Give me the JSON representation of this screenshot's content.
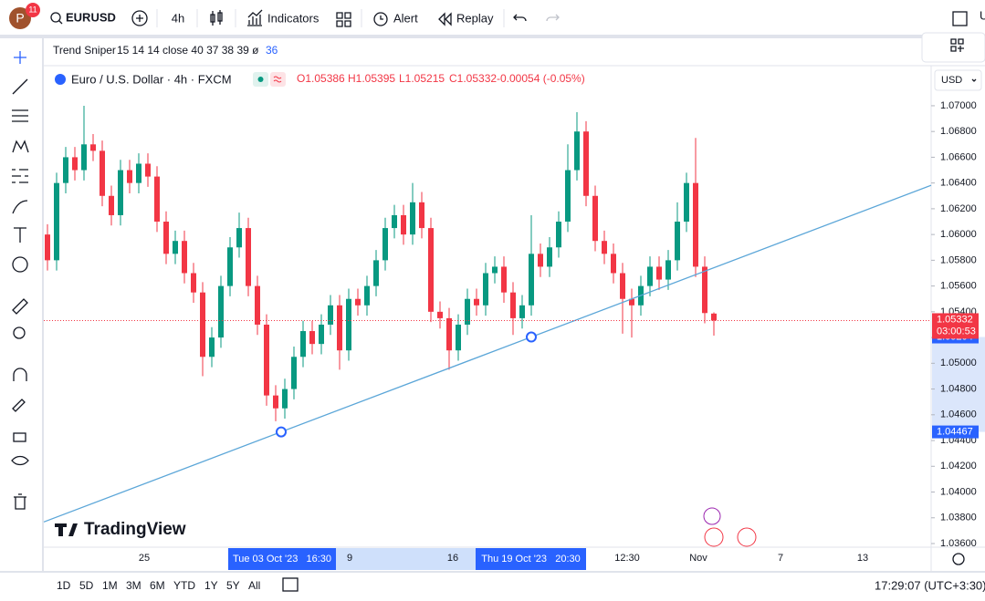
{
  "toolbar": {
    "avatar": "P",
    "badge": "11",
    "symbol": "EURUSD",
    "interval": "4h",
    "indicators": "Indicators",
    "alert": "Alert",
    "replay": "Replay",
    "right_cut": "U"
  },
  "indicator_legend": {
    "name": "Trend Sniper",
    "params": "15 14 14 close 40 37 38 39 ø",
    "value": "36"
  },
  "legend": {
    "title": "Euro / U.S. Dollar · 4h · FXCM",
    "open": "O1.05386",
    "high": "H1.05395",
    "low": "L1.05215",
    "close": "C1.05332",
    "change": "-0.00054 (-0.05%)"
  },
  "currency": "USD",
  "watermark": "TradingView",
  "bottom_bar": {
    "ranges": [
      "1D",
      "5D",
      "1M",
      "3M",
      "6M",
      "YTD",
      "1Y",
      "5Y",
      "All"
    ],
    "clock": "17:29:07 (UTC+3:30)"
  },
  "chart_data": {
    "type": "candlestick",
    "up_color": "#089981",
    "down_color": "#f23645",
    "ylim": [
      1.036,
      1.0729
    ],
    "yticks": [
      {
        "value": 1.036,
        "label": "1.03600"
      },
      {
        "value": 1.038,
        "label": "1.03800"
      },
      {
        "value": 1.04,
        "label": "1.04000"
      },
      {
        "value": 1.042,
        "label": "1.04200"
      },
      {
        "value": 1.044,
        "label": "1.04400"
      },
      {
        "value": 1.046,
        "label": "1.04600"
      },
      {
        "value": 1.048,
        "label": "1.04800"
      },
      {
        "value": 1.05,
        "label": "1.05000"
      },
      {
        "value": 1.052,
        "label": "1.05200"
      },
      {
        "value": 1.054,
        "label": "1.05400"
      },
      {
        "value": 1.056,
        "label": "1.05600"
      },
      {
        "value": 1.058,
        "label": "1.05800"
      },
      {
        "value": 1.06,
        "label": "1.06000"
      },
      {
        "value": 1.062,
        "label": "1.06200"
      },
      {
        "value": 1.064,
        "label": "1.06400"
      },
      {
        "value": 1.066,
        "label": "1.06600"
      },
      {
        "value": 1.068,
        "label": "1.06800"
      },
      {
        "value": 1.07,
        "label": "1.07000"
      }
    ],
    "x_labels": [
      "25",
      "9",
      "16",
      "12:30",
      "Nov",
      "7",
      "13"
    ],
    "x_highlights": [
      "Tue 03 Oct '23   16:30",
      "Thu 19 Oct '23   20:30"
    ],
    "trendline": {
      "color": "#5ba6d8",
      "prices": [
        1.04467,
        1.05204
      ]
    },
    "last_price": 1.05332,
    "countdown": "03:00:53",
    "candles": [
      [
        1.06,
        1.0608,
        1.0572,
        1.058
      ],
      [
        1.058,
        1.0648,
        1.0572,
        1.064
      ],
      [
        1.064,
        1.0668,
        1.0632,
        1.066
      ],
      [
        1.066,
        1.0668,
        1.0642,
        1.065
      ],
      [
        1.065,
        1.07,
        1.0642,
        1.067
      ],
      [
        1.067,
        1.0678,
        1.0657,
        1.0665
      ],
      [
        1.0665,
        1.0673,
        1.0622,
        1.063
      ],
      [
        1.063,
        1.0638,
        1.0607,
        1.0615
      ],
      [
        1.0615,
        1.0658,
        1.0607,
        1.065
      ],
      [
        1.065,
        1.0658,
        1.0632,
        1.064
      ],
      [
        1.064,
        1.0663,
        1.0632,
        1.0655
      ],
      [
        1.0655,
        1.0663,
        1.0637,
        1.0645
      ],
      [
        1.0645,
        1.0653,
        1.0602,
        1.061
      ],
      [
        1.061,
        1.0618,
        1.0577,
        1.0585
      ],
      [
        1.0585,
        1.0603,
        1.0577,
        1.0595
      ],
      [
        1.0595,
        1.0603,
        1.0562,
        1.057
      ],
      [
        1.057,
        1.0578,
        1.0547,
        1.0555
      ],
      [
        1.0555,
        1.0563,
        1.049,
        1.0505
      ],
      [
        1.0505,
        1.0528,
        1.0497,
        1.052
      ],
      [
        1.052,
        1.0568,
        1.0512,
        1.056
      ],
      [
        1.056,
        1.0598,
        1.0552,
        1.059
      ],
      [
        1.059,
        1.0617,
        1.0582,
        1.0605
      ],
      [
        1.0605,
        1.0613,
        1.0552,
        1.056
      ],
      [
        1.056,
        1.0568,
        1.0522,
        1.053
      ],
      [
        1.053,
        1.0538,
        1.0467,
        1.0475
      ],
      [
        1.0475,
        1.0483,
        1.0455,
        1.0465
      ],
      [
        1.0465,
        1.0488,
        1.0457,
        1.048
      ],
      [
        1.048,
        1.0513,
        1.0472,
        1.0505
      ],
      [
        1.0505,
        1.0533,
        1.0497,
        1.0525
      ],
      [
        1.0525,
        1.0533,
        1.0507,
        1.0515
      ],
      [
        1.0515,
        1.0538,
        1.0507,
        1.053
      ],
      [
        1.053,
        1.0553,
        1.0522,
        1.0545
      ],
      [
        1.0545,
        1.0553,
        1.0495,
        1.051
      ],
      [
        1.051,
        1.0558,
        1.0502,
        1.055
      ],
      [
        1.055,
        1.0558,
        1.0537,
        1.0545
      ],
      [
        1.0545,
        1.0568,
        1.0537,
        1.056
      ],
      [
        1.056,
        1.0588,
        1.0552,
        1.058
      ],
      [
        1.058,
        1.0613,
        1.0572,
        1.0605
      ],
      [
        1.0605,
        1.0623,
        1.0597,
        1.0615
      ],
      [
        1.0615,
        1.0623,
        1.0592,
        1.06
      ],
      [
        1.06,
        1.064,
        1.0592,
        1.0625
      ],
      [
        1.0625,
        1.0633,
        1.0597,
        1.0605
      ],
      [
        1.0605,
        1.0613,
        1.0532,
        1.054
      ],
      [
        1.054,
        1.0548,
        1.0527,
        1.0535
      ],
      [
        1.0535,
        1.0543,
        1.0495,
        1.051
      ],
      [
        1.051,
        1.0538,
        1.0502,
        1.053
      ],
      [
        1.053,
        1.0558,
        1.0522,
        1.055
      ],
      [
        1.055,
        1.0558,
        1.0537,
        1.0545
      ],
      [
        1.0545,
        1.0578,
        1.0537,
        1.057
      ],
      [
        1.057,
        1.0583,
        1.0562,
        1.0575
      ],
      [
        1.0575,
        1.0583,
        1.0547,
        1.0555
      ],
      [
        1.0555,
        1.0563,
        1.0522,
        1.0535
      ],
      [
        1.0535,
        1.0553,
        1.0527,
        1.0545
      ],
      [
        1.0545,
        1.0615,
        1.0537,
        1.0585
      ],
      [
        1.0585,
        1.0593,
        1.0567,
        1.0575
      ],
      [
        1.0575,
        1.0598,
        1.0567,
        1.059
      ],
      [
        1.059,
        1.0618,
        1.0582,
        1.061
      ],
      [
        1.061,
        1.067,
        1.0602,
        1.065
      ],
      [
        1.065,
        1.0695,
        1.0642,
        1.068
      ],
      [
        1.068,
        1.0688,
        1.0622,
        1.063
      ],
      [
        1.063,
        1.0638,
        1.0587,
        1.0595
      ],
      [
        1.0595,
        1.0603,
        1.0577,
        1.0585
      ],
      [
        1.0585,
        1.0593,
        1.0562,
        1.057
      ],
      [
        1.057,
        1.0578,
        1.0523,
        1.055
      ],
      [
        1.055,
        1.0558,
        1.052,
        1.0545
      ],
      [
        1.0545,
        1.0568,
        1.0537,
        1.056
      ],
      [
        1.056,
        1.0583,
        1.0552,
        1.0575
      ],
      [
        1.0575,
        1.0583,
        1.0557,
        1.0565
      ],
      [
        1.0565,
        1.0588,
        1.0557,
        1.058
      ],
      [
        1.058,
        1.0625,
        1.0572,
        1.061
      ],
      [
        1.061,
        1.0648,
        1.0602,
        1.064
      ],
      [
        1.064,
        1.0675,
        1.0567,
        1.0575
      ],
      [
        1.0575,
        1.0583,
        1.0531,
        1.0539
      ],
      [
        1.05386,
        1.05395,
        1.05215,
        1.05332
      ]
    ]
  }
}
